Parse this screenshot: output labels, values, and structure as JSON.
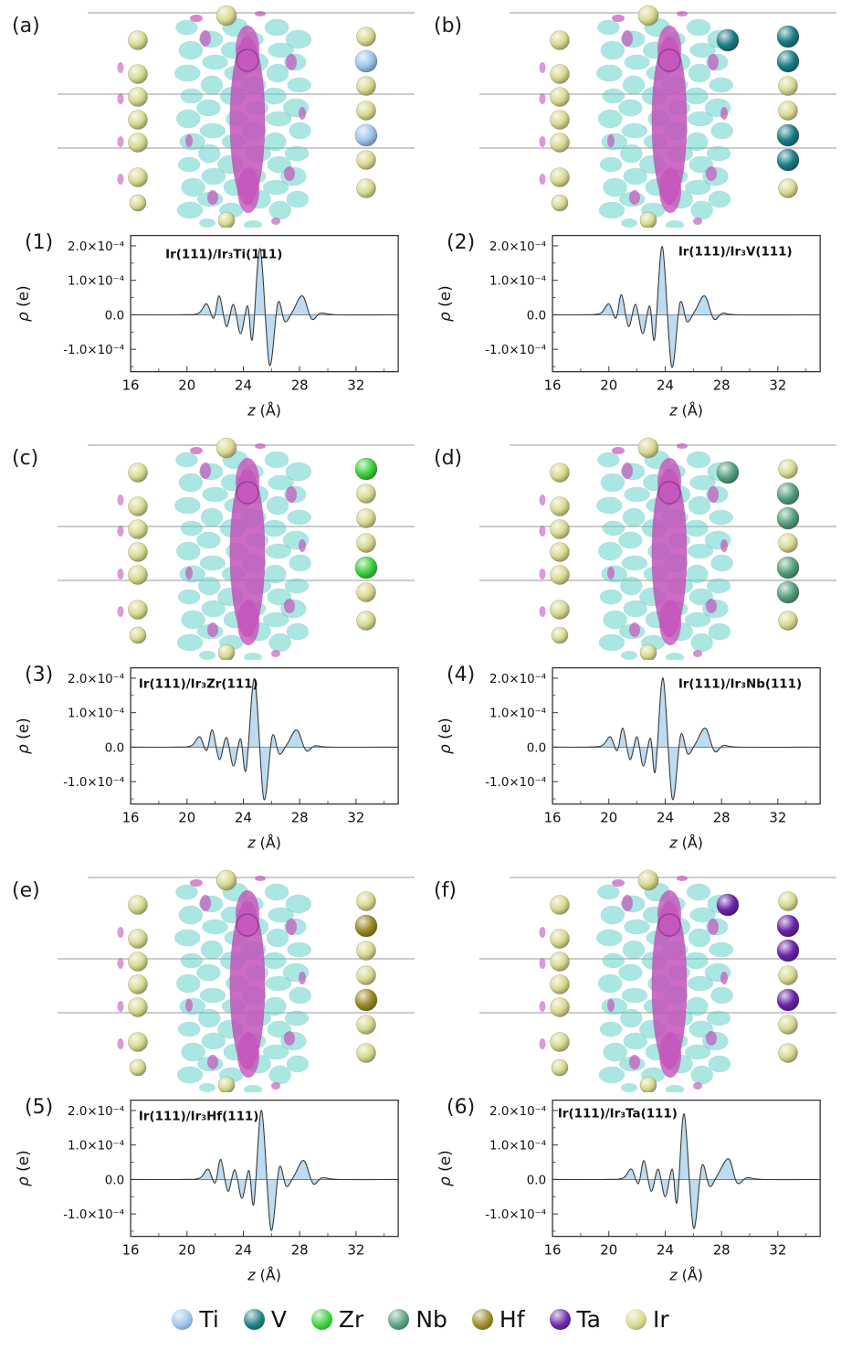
{
  "colors": {
    "Ti": "#9dc6ee",
    "V": "#1b7d85",
    "Zr": "#3ed13e",
    "Nb": "#55a07e",
    "Hf": "#9a8a25",
    "Ta": "#6b24a9",
    "Ir": "#d9da90",
    "iso_cyan": "#58cfc6",
    "iso_magenta": "#c454bc",
    "curve_fill": "#b9daf0",
    "curve_line": "#3a3a3a"
  },
  "structures": [
    {
      "panel_label": "(a)",
      "element": "Ti",
      "cluster_x_atom": false,
      "right_atoms": [
        "ir",
        "x",
        "ir",
        "ir",
        "x",
        "ir",
        "ir"
      ]
    },
    {
      "panel_label": "(b)",
      "element": "V",
      "cluster_x_atom": true,
      "right_atoms": [
        "x",
        "x",
        "ir",
        "ir",
        "x",
        "x",
        "ir"
      ]
    },
    {
      "panel_label": "(c)",
      "element": "Zr",
      "cluster_x_atom": false,
      "right_atoms": [
        "x",
        "ir",
        "ir",
        "ir",
        "x",
        "ir",
        "ir"
      ]
    },
    {
      "panel_label": "(d)",
      "element": "Nb",
      "cluster_x_atom": true,
      "right_atoms": [
        "ir",
        "x",
        "x",
        "ir",
        "x",
        "x",
        "ir"
      ]
    },
    {
      "panel_label": "(e)",
      "element": "Hf",
      "cluster_x_atom": false,
      "right_atoms": [
        "ir",
        "x",
        "ir",
        "ir",
        "x",
        "ir",
        "ir"
      ]
    },
    {
      "panel_label": "(f)",
      "element": "Ta",
      "cluster_x_atom": true,
      "right_atoms": [
        "ir",
        "x",
        "x",
        "ir",
        "x",
        "ir",
        "ir"
      ]
    }
  ],
  "chart_data": [
    {
      "type": "area",
      "panel_label": "(1)",
      "annotation": "Ir(111)/Ir₃Ti(111)",
      "ann_x": 0.13,
      "ann_y": 0.1,
      "xlabel": "z (Å)",
      "ylabel": "ρ (e)",
      "y_unit": "×10⁻⁴ e",
      "xlim": [
        16,
        35
      ],
      "ylim": [
        -1.65,
        2.3
      ],
      "x_ticks": [
        16,
        20,
        24,
        28,
        32
      ],
      "x_minor_ticks": [
        18,
        22,
        26,
        30,
        34
      ],
      "y_ticks": [
        {
          "v": 2,
          "label": "2.0×10⁻⁴"
        },
        {
          "v": 1,
          "label": "1.0×10⁻⁴"
        },
        {
          "v": 0,
          "label": "0.0"
        },
        {
          "v": -1,
          "label": "-1.0×10⁻⁴"
        }
      ],
      "y_minor_ticks": [
        1.5,
        0.5,
        -0.5,
        -1.5
      ],
      "points": [
        [
          16,
          0
        ],
        [
          19.5,
          0
        ],
        [
          20.8,
          0.04
        ],
        [
          21.4,
          0.32
        ],
        [
          21.9,
          -0.1
        ],
        [
          22.3,
          0.55
        ],
        [
          22.8,
          -0.34
        ],
        [
          23.3,
          0.3
        ],
        [
          23.8,
          -0.55
        ],
        [
          24.3,
          0.26
        ],
        [
          24.65,
          -0.7
        ],
        [
          25.2,
          1.92
        ],
        [
          25.85,
          -1.45
        ],
        [
          26.45,
          0.35
        ],
        [
          26.95,
          -0.2
        ],
        [
          27.5,
          0.1
        ],
        [
          28.2,
          0.55
        ],
        [
          28.85,
          -0.12
        ],
        [
          29.5,
          0.05
        ],
        [
          30.6,
          0
        ],
        [
          34.9,
          0
        ]
      ]
    },
    {
      "type": "area",
      "panel_label": "(2)",
      "annotation": "Ir(111)/Ir₃V(111)",
      "ann_x": 0.47,
      "ann_y": 0.08,
      "xlabel": "z (Å)",
      "ylabel": "ρ (e)",
      "y_unit": "×10⁻⁴ e",
      "xlim": [
        16,
        35
      ],
      "ylim": [
        -1.65,
        2.3
      ],
      "x_ticks": [
        16,
        20,
        24,
        28,
        32
      ],
      "x_minor_ticks": [
        18,
        22,
        26,
        30,
        34
      ],
      "y_ticks": [
        {
          "v": 2,
          "label": "2.0×10⁻⁴"
        },
        {
          "v": 1,
          "label": "1.0×10⁻⁴"
        },
        {
          "v": 0,
          "label": "0.0"
        },
        {
          "v": -1,
          "label": "-1.0×10⁻⁴"
        }
      ],
      "y_minor_ticks": [
        1.5,
        0.5,
        -0.5,
        -1.5
      ],
      "points": [
        [
          16,
          0
        ],
        [
          18.2,
          0
        ],
        [
          19.4,
          0.04
        ],
        [
          20,
          0.32
        ],
        [
          20.5,
          -0.1
        ],
        [
          20.9,
          0.58
        ],
        [
          21.4,
          -0.34
        ],
        [
          21.9,
          0.3
        ],
        [
          22.4,
          -0.55
        ],
        [
          22.9,
          0.26
        ],
        [
          23.25,
          -0.7
        ],
        [
          23.8,
          1.98
        ],
        [
          24.45,
          -1.5
        ],
        [
          25.05,
          0.35
        ],
        [
          25.55,
          -0.2
        ],
        [
          26.1,
          0.1
        ],
        [
          26.8,
          0.55
        ],
        [
          27.45,
          -0.12
        ],
        [
          28.1,
          0.05
        ],
        [
          29.2,
          0
        ],
        [
          34.9,
          0
        ]
      ]
    },
    {
      "type": "area",
      "panel_label": "(3)",
      "annotation": "Ir(111)/Ir₃Zr(111)",
      "ann_x": 0.03,
      "ann_y": 0.08,
      "xlabel": "z (Å)",
      "ylabel": "ρ (e)",
      "y_unit": "×10⁻⁴ e",
      "xlim": [
        16,
        35
      ],
      "ylim": [
        -1.65,
        2.3
      ],
      "x_ticks": [
        16,
        20,
        24,
        28,
        32
      ],
      "x_minor_ticks": [
        18,
        22,
        26,
        30,
        34
      ],
      "y_ticks": [
        {
          "v": 2,
          "label": "2.0×10⁻⁴"
        },
        {
          "v": 1,
          "label": "1.0×10⁻⁴"
        },
        {
          "v": 0,
          "label": "0.0"
        },
        {
          "v": -1,
          "label": "-1.0×10⁻⁴"
        }
      ],
      "y_minor_ticks": [
        1.5,
        0.5,
        -0.5,
        -1.5
      ],
      "points": [
        [
          16,
          0
        ],
        [
          19.1,
          0
        ],
        [
          20.3,
          0.04
        ],
        [
          20.9,
          0.3
        ],
        [
          21.4,
          -0.1
        ],
        [
          21.8,
          0.5
        ],
        [
          22.3,
          -0.36
        ],
        [
          22.8,
          0.28
        ],
        [
          23.3,
          -0.55
        ],
        [
          23.8,
          0.24
        ],
        [
          24.2,
          -0.66
        ],
        [
          24.8,
          1.98
        ],
        [
          25.45,
          -1.5
        ],
        [
          26.05,
          0.32
        ],
        [
          26.55,
          -0.2
        ],
        [
          27.1,
          0.08
        ],
        [
          27.8,
          0.5
        ],
        [
          28.45,
          -0.1
        ],
        [
          29.1,
          0.04
        ],
        [
          30.2,
          0
        ],
        [
          34.9,
          0
        ]
      ]
    },
    {
      "type": "area",
      "panel_label": "(4)",
      "annotation": "Ir(111)/Ir₃Nb(111)",
      "ann_x": 0.47,
      "ann_y": 0.08,
      "xlabel": "z (Å)",
      "ylabel": "ρ (e)",
      "y_unit": "×10⁻⁴ e",
      "xlim": [
        16,
        35
      ],
      "ylim": [
        -1.65,
        2.3
      ],
      "x_ticks": [
        16,
        20,
        24,
        28,
        32
      ],
      "x_minor_ticks": [
        18,
        22,
        26,
        30,
        34
      ],
      "y_ticks": [
        {
          "v": 2,
          "label": "2.0×10⁻⁴"
        },
        {
          "v": 1,
          "label": "1.0×10⁻⁴"
        },
        {
          "v": 0,
          "label": "0.0"
        },
        {
          "v": -1,
          "label": "-1.0×10⁻⁴"
        }
      ],
      "y_minor_ticks": [
        1.5,
        0.5,
        -0.5,
        -1.5
      ],
      "points": [
        [
          16,
          0
        ],
        [
          18.3,
          0
        ],
        [
          19.5,
          0.04
        ],
        [
          20.1,
          0.3
        ],
        [
          20.6,
          -0.1
        ],
        [
          21,
          0.55
        ],
        [
          21.5,
          -0.36
        ],
        [
          22,
          0.3
        ],
        [
          22.45,
          -0.55
        ],
        [
          22.95,
          0.26
        ],
        [
          23.3,
          -0.7
        ],
        [
          23.85,
          2.0
        ],
        [
          24.5,
          -1.5
        ],
        [
          25.1,
          0.35
        ],
        [
          25.6,
          -0.2
        ],
        [
          26.15,
          0.1
        ],
        [
          26.85,
          0.55
        ],
        [
          27.5,
          -0.12
        ],
        [
          28.15,
          0.05
        ],
        [
          29.3,
          0
        ],
        [
          34.9,
          0
        ]
      ]
    },
    {
      "type": "area",
      "panel_label": "(5)",
      "annotation": "Ir(111)/Ir₃Hf(111)",
      "ann_x": 0.03,
      "ann_y": 0.08,
      "xlabel": "z (Å)",
      "ylabel": "ρ (e)",
      "y_unit": "×10⁻⁴ e",
      "xlim": [
        16,
        35
      ],
      "ylim": [
        -1.65,
        2.3
      ],
      "x_ticks": [
        16,
        20,
        24,
        28,
        32
      ],
      "x_minor_ticks": [
        18,
        22,
        26,
        30,
        34
      ],
      "y_ticks": [
        {
          "v": 2,
          "label": "2.0×10⁻⁴"
        },
        {
          "v": 1,
          "label": "1.0×10⁻⁴"
        },
        {
          "v": 0,
          "label": "0.0"
        },
        {
          "v": -1,
          "label": "-1.0×10⁻⁴"
        }
      ],
      "y_minor_ticks": [
        1.5,
        0.5,
        -0.5,
        -1.5
      ],
      "points": [
        [
          16,
          0
        ],
        [
          19.6,
          0
        ],
        [
          20.9,
          0.04
        ],
        [
          21.5,
          0.3
        ],
        [
          22,
          -0.1
        ],
        [
          22.4,
          0.58
        ],
        [
          22.9,
          -0.34
        ],
        [
          23.4,
          0.28
        ],
        [
          23.9,
          -0.55
        ],
        [
          24.4,
          0.26
        ],
        [
          24.75,
          -0.7
        ],
        [
          25.3,
          2.0
        ],
        [
          25.95,
          -1.45
        ],
        [
          26.55,
          0.35
        ],
        [
          27.05,
          -0.2
        ],
        [
          27.6,
          0.1
        ],
        [
          28.3,
          0.55
        ],
        [
          28.95,
          -0.12
        ],
        [
          29.6,
          0.05
        ],
        [
          30.7,
          0
        ],
        [
          34.9,
          0
        ]
      ]
    },
    {
      "type": "area",
      "panel_label": "(6)",
      "annotation": "Ir(111)/Ir₃Ta(111)",
      "ann_x": 0.02,
      "ann_y": 0.06,
      "xlabel": "z (Å)",
      "ylabel": "ρ (e)",
      "y_unit": "×10⁻⁴ e",
      "xlim": [
        16,
        35
      ],
      "ylim": [
        -1.65,
        2.3
      ],
      "x_ticks": [
        16,
        20,
        24,
        28,
        32
      ],
      "x_minor_ticks": [
        18,
        22,
        26,
        30,
        34
      ],
      "y_ticks": [
        {
          "v": 2,
          "label": "2.0×10⁻⁴"
        },
        {
          "v": 1,
          "label": "1.0×10⁻⁴"
        },
        {
          "v": 0,
          "label": "0.0"
        },
        {
          "v": -1,
          "label": "-1.0×10⁻⁴"
        }
      ],
      "y_minor_ticks": [
        1.5,
        0.5,
        -0.5,
        -1.5
      ],
      "points": [
        [
          16,
          0
        ],
        [
          19.7,
          0
        ],
        [
          21,
          0.04
        ],
        [
          21.6,
          0.3
        ],
        [
          22.1,
          -0.12
        ],
        [
          22.5,
          0.55
        ],
        [
          23,
          -0.34
        ],
        [
          23.5,
          0.3
        ],
        [
          24,
          -0.5
        ],
        [
          24.5,
          0.3
        ],
        [
          24.85,
          -0.65
        ],
        [
          25.35,
          1.9
        ],
        [
          26,
          -1.4
        ],
        [
          26.6,
          0.4
        ],
        [
          27.15,
          -0.2
        ],
        [
          27.7,
          0.12
        ],
        [
          28.5,
          0.6
        ],
        [
          29.1,
          -0.1
        ],
        [
          29.8,
          0.05
        ],
        [
          30.9,
          0
        ],
        [
          34.9,
          0
        ]
      ]
    }
  ],
  "legend": {
    "items": [
      {
        "element": "Ti",
        "label": "Ti"
      },
      {
        "element": "V",
        "label": "V"
      },
      {
        "element": "Zr",
        "label": "Zr"
      },
      {
        "element": "Nb",
        "label": "Nb"
      },
      {
        "element": "Hf",
        "label": "Hf"
      },
      {
        "element": "Ta",
        "label": "Ta"
      },
      {
        "element": "Ir",
        "label": "Ir"
      }
    ]
  }
}
